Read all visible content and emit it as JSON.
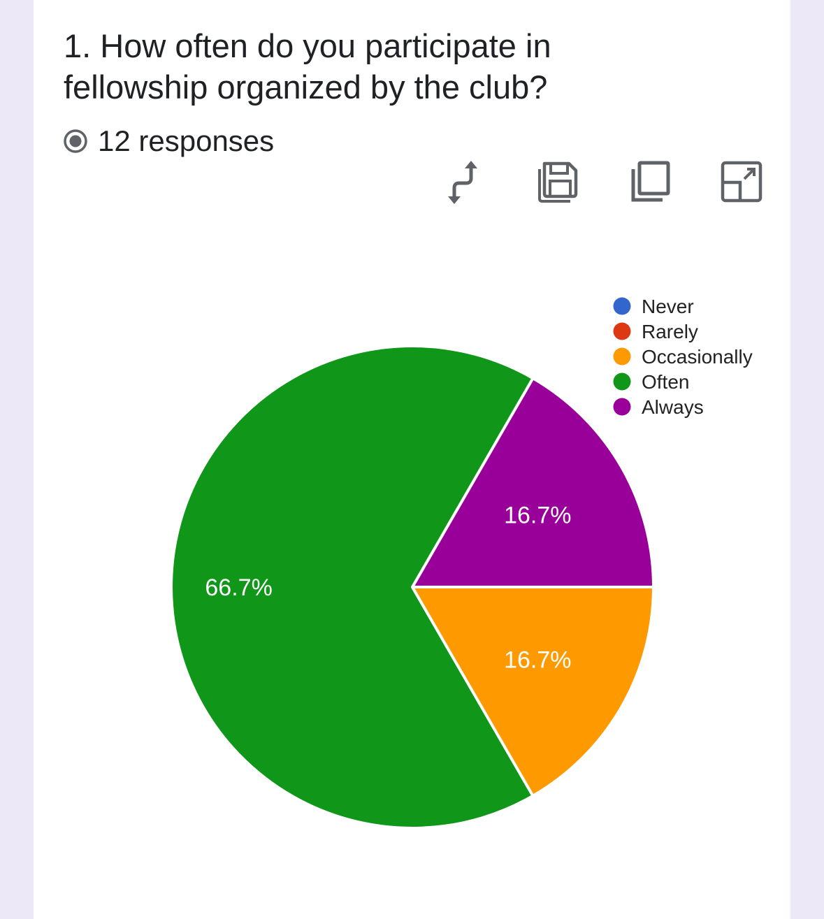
{
  "question": {
    "title": "1. How often do you participate in fellowship organized by the club?",
    "responses_label": "12 responses"
  },
  "toolbar": {
    "icons": [
      "swap-axes-icon",
      "save-icon",
      "copy-icon",
      "open-in-new-icon"
    ]
  },
  "colors": {
    "background": "#ece8f7",
    "card": "#ffffff",
    "icon": "#5f6368",
    "slice_border": "#ffffff"
  },
  "chart_data": {
    "type": "pie",
    "categories": [
      "Never",
      "Rarely",
      "Occasionally",
      "Often",
      "Always"
    ],
    "values": [
      0,
      0,
      2,
      8,
      2
    ],
    "percent_labels": [
      "0%",
      "0%",
      "16.7%",
      "66.7%",
      "16.7%"
    ],
    "colors": [
      "#3366cc",
      "#dc3912",
      "#ff9900",
      "#109618",
      "#990099"
    ],
    "legend_position": "right"
  }
}
